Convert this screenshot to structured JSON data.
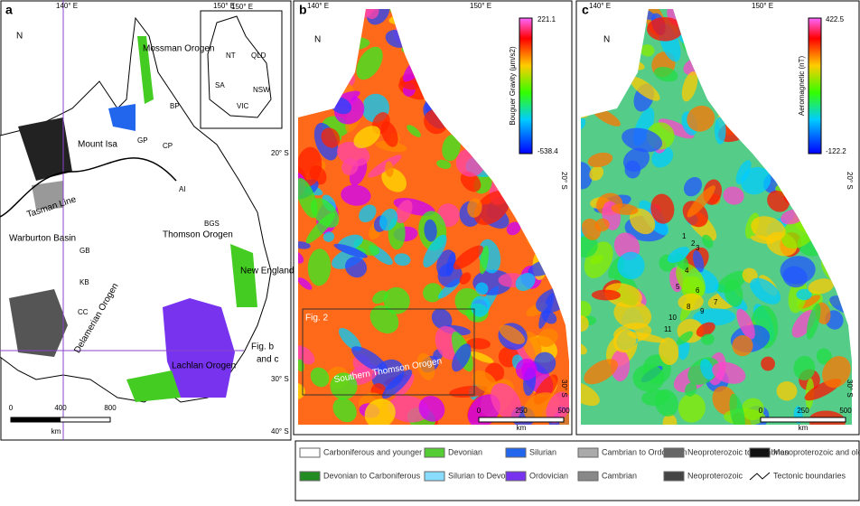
{
  "panel_a": {
    "label": "a",
    "lon_labels": [
      "140° E",
      "150° E"
    ],
    "lat_labels": [
      "20° S",
      "30° S",
      "40° S"
    ],
    "north": "N",
    "regions": [
      "Mossman Orogen",
      "Mount Isa",
      "Thomson Orogen",
      "Warburton Basin",
      "New England Orogen",
      "Lachlan Orogen",
      "Delamerian Orogen",
      "Tasman Line"
    ],
    "abbreviations": [
      "BP",
      "GP",
      "CP",
      "AI",
      "BGS",
      "GB",
      "KB",
      "CC"
    ],
    "inset": {
      "lon": "150° E",
      "states": [
        "NT",
        "QLD",
        "SA",
        "NSW",
        "VIC"
      ]
    },
    "fig_ref": [
      "Fig. b",
      "and c"
    ],
    "scale": {
      "ticks": [
        "0",
        "400",
        "800"
      ],
      "unit": "km"
    }
  },
  "panel_b": {
    "label": "b",
    "lon_labels": [
      "140° E",
      "150° E"
    ],
    "lat_labels": [
      "20° S",
      "30° S"
    ],
    "north": "N",
    "colorbar": {
      "max": "221.1",
      "min": "-538.4",
      "title": "Bouguer Gravity (μm/s2)"
    },
    "fig_ref": "Fig. 2",
    "region": "Southern Thomson Orogen",
    "scale": {
      "ticks": [
        "0",
        "250",
        "500"
      ],
      "unit": "km"
    }
  },
  "panel_c": {
    "label": "c",
    "lon_labels": [
      "140° E",
      "150° E"
    ],
    "lat_labels": [
      "20° S",
      "30° S"
    ],
    "north": "N",
    "colorbar": {
      "max": "422.5",
      "min": "-122.2",
      "title": "Aeromagnetic (nT)"
    },
    "points": [
      "1",
      "2",
      "3",
      "4",
      "5",
      "6",
      "7",
      "8",
      "9",
      "10",
      "11"
    ],
    "scale": {
      "ticks": [
        "0",
        "250",
        "500"
      ],
      "unit": "km"
    }
  },
  "legend": {
    "items": [
      "Carboniferous and younger",
      "Devonian to Carboniferous",
      "Devonian",
      "Silurian to Devonian",
      "Silurian",
      "Ordovician",
      "Cambrian to Ordovician",
      "Cambrian",
      "Neoproterozoic to Cambrian",
      "Neoproterozoic",
      "Mesoproterozoic and older",
      "Tectonic boundaries"
    ]
  }
}
